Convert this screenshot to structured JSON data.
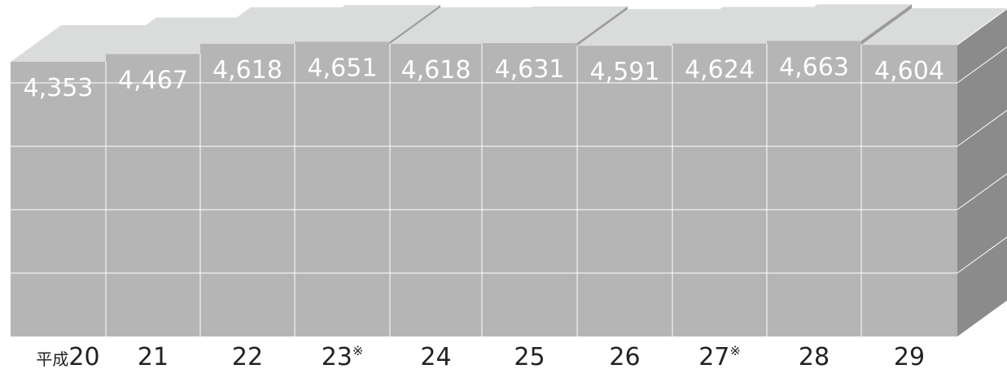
{
  "chart_data": {
    "type": "bar",
    "title": "",
    "xlabel": "",
    "ylabel": "",
    "x_prefix": "平成",
    "categories": [
      "20",
      "21",
      "22",
      "23※",
      "24",
      "25",
      "26",
      "27※",
      "28",
      "29"
    ],
    "values": [
      4353,
      4467,
      4618,
      4651,
      4618,
      4631,
      4591,
      4624,
      4663,
      4604
    ],
    "value_labels": [
      "4,353",
      "4,467",
      "4,618",
      "4,651",
      "4,618",
      "4,631",
      "4,591",
      "4,624",
      "4,663",
      "4,604"
    ],
    "style": "3d-extruded-blocks",
    "colors": {
      "front": "#b4b5b4",
      "top": "#dadcdb",
      "side": "#8a8b8a",
      "step": "#9a9b9a",
      "grid": "#ffffff",
      "value_text": "#ffffff",
      "axis_text": "#222222"
    }
  }
}
